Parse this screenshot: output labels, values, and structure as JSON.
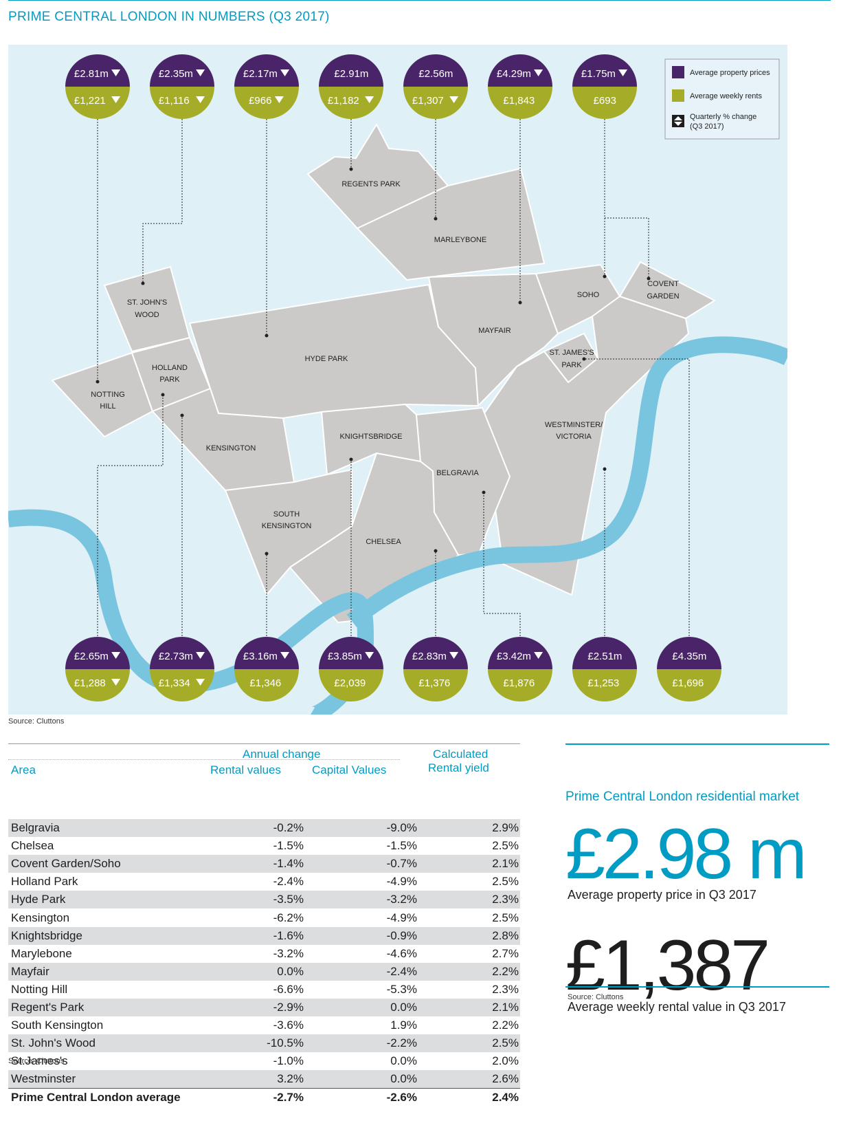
{
  "title": "PRIME CENTRAL LONDON IN NUMBERS (Q3 2017)",
  "legend": {
    "price": "Average property prices",
    "rent": "Average weekly rents",
    "change": "Quarterly % change",
    "change_sub": "(Q3 2017)"
  },
  "colors": {
    "purple": "#4a2468",
    "olive": "#a5ad28",
    "land": "#cbcac8",
    "river": "#79c5e0",
    "water_bg": "#dff0f7",
    "accent": "#009cc4"
  },
  "areas": [
    "REGENTS PARK",
    "MARLEYBONE",
    "ST. JOHN'S",
    "WOOD",
    "SOHO",
    "COVENT",
    "GARDEN",
    "MAYFAIR",
    "HYDE PARK",
    "HOLLAND",
    "PARK",
    "NOTTING",
    "HILL",
    "ST. JAMES'S",
    "PARK",
    "KENSINGTON",
    "KNIGHTSBRIDGE",
    "WESTMINSTER/",
    "VICTORIA",
    "BELGRAVIA",
    "SOUTH",
    "KENSINGTON",
    "CHELSEA"
  ],
  "top_markers": [
    {
      "price": "£2.81m",
      "rent": "£1,221",
      "price_down": true,
      "rent_down": true
    },
    {
      "price": "£2.35m",
      "rent": "£1,116",
      "price_down": true,
      "rent_down": true
    },
    {
      "price": "£2.17m",
      "rent": "£966",
      "price_down": true,
      "rent_down": true
    },
    {
      "price": "£2.91m",
      "rent": "£1,182",
      "price_down": false,
      "rent_down": true
    },
    {
      "price": "£2.56m",
      "rent": "£1,307",
      "price_down": false,
      "rent_down": true
    },
    {
      "price": "£4.29m",
      "rent": "£1,843",
      "price_down": true,
      "rent_down": false
    },
    {
      "price": "£1.75m",
      "rent": "£693",
      "price_down": true,
      "rent_down": false
    }
  ],
  "bottom_markers": [
    {
      "price": "£2.65m",
      "rent": "£1,288",
      "price_down": true,
      "rent_down": true
    },
    {
      "price": "£2.73m",
      "rent": "£1,334",
      "price_down": true,
      "rent_down": true
    },
    {
      "price": "£3.16m",
      "rent": "£1,346",
      "price_down": true,
      "rent_down": false
    },
    {
      "price": "£3.85m",
      "rent": "£2,039",
      "price_down": true,
      "rent_down": false
    },
    {
      "price": "£2.83m",
      "rent": "£1,376",
      "price_down": true,
      "rent_down": false
    },
    {
      "price": "£3.42m",
      "rent": "£1,876",
      "price_down": true,
      "rent_down": false
    },
    {
      "price": "£2.51m",
      "rent": "£1,253",
      "price_down": false,
      "rent_down": false
    },
    {
      "price": "£4.35m",
      "rent": "£1,696",
      "price_down": false,
      "rent_down": false
    }
  ],
  "source_map": "Source: Cluttons",
  "table": {
    "group_header": "Annual change",
    "col_area": "Area",
    "col_rental": "Rental values",
    "col_capital": "Capital Values",
    "col_yield_1": "Calculated",
    "col_yield_2": "Rental yield",
    "rows": [
      [
        "Belgravia",
        "-0.2%",
        "-9.0%",
        "2.9%"
      ],
      [
        "Chelsea",
        "-1.5%",
        "-1.5%",
        "2.5%"
      ],
      [
        "Covent Garden/Soho",
        "-1.4%",
        "-0.7%",
        "2.1%"
      ],
      [
        "Holland Park",
        "-2.4%",
        "-4.9%",
        "2.5%"
      ],
      [
        "Hyde Park",
        "-3.5%",
        "-3.2%",
        "2.3%"
      ],
      [
        "Kensington",
        "-6.2%",
        "-4.9%",
        "2.5%"
      ],
      [
        "Knightsbridge",
        "-1.6%",
        "-0.9%",
        "2.8%"
      ],
      [
        "Marylebone",
        "-3.2%",
        "-4.6%",
        "2.7%"
      ],
      [
        "Mayfair",
        "0.0%",
        "-2.4%",
        "2.2%"
      ],
      [
        "Notting Hill",
        "-6.6%",
        "-5.3%",
        "2.3%"
      ],
      [
        "Regent's Park",
        "-2.9%",
        "0.0%",
        "2.1%"
      ],
      [
        "South Kensington",
        "-3.6%",
        "1.9%",
        "2.2%"
      ],
      [
        "St. John's Wood",
        "-10.5%",
        "-2.2%",
        "2.5%"
      ],
      [
        "St.James's",
        "-1.0%",
        "0.0%",
        "2.0%"
      ],
      [
        "Westminster",
        "3.2%",
        "0.0%",
        "2.6%"
      ]
    ],
    "average": [
      "Prime Central London average",
      "-2.7%",
      "-2.6%",
      "2.4%"
    ],
    "source": "Source: Cluttons"
  },
  "panel": {
    "title": "Prime Central London residential market",
    "price_value": "£2.98 m",
    "price_caption": "Average property price in Q3 2017",
    "rent_value": "£1,387",
    "rent_caption": "Average weekly rental value in Q3 2017",
    "source": "Source: Cluttons"
  }
}
